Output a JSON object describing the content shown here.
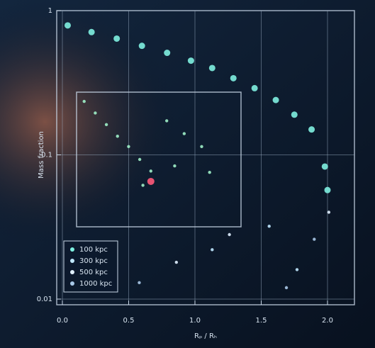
{
  "chart_data": [
    {
      "type": "scatter",
      "log_y": true,
      "grid": true,
      "legend": "lower left",
      "x_label": "Rₚ / Rₕ",
      "y_label": "Mass fraction",
      "xlim": [
        0.0,
        2.0
      ],
      "ylim": [
        0.01,
        1
      ],
      "xticks": [
        {
          "value": 0,
          "label": "0.0"
        },
        0.5,
        {
          "value": 1,
          "label": "1.0"
        },
        1.5,
        {
          "value": 2,
          "label": "2.0"
        }
      ],
      "yticks": [
        0.01,
        0.1,
        1
      ],
      "series": [
        {
          "name": "100 kpc",
          "color": "#7ff0e0",
          "x": [
            0.04,
            0.22,
            0.41,
            0.6,
            0.79,
            0.97,
            1.13,
            1.29,
            1.45,
            1.61,
            1.75,
            1.88,
            1.98,
            2.0
          ],
          "values": [
            0.79,
            0.71,
            0.64,
            0.57,
            0.51,
            0.45,
            0.4,
            0.34,
            0.29,
            0.24,
            0.19,
            0.15,
            0.083,
            0.057
          ]
        },
        {
          "name": "300 kpc",
          "color": "#c0e8ff",
          "x": [
            1.13,
            1.56,
            1.77
          ],
          "values": [
            0.022,
            0.032,
            0.016
          ]
        },
        {
          "name": "500 kpc",
          "color": "#e0f0ff",
          "x": [
            0.86,
            1.26,
            2.01
          ],
          "values": [
            0.018,
            0.028,
            0.04
          ]
        },
        {
          "name": "1000 kpc",
          "color": "#a8c8e8",
          "x": [
            0.58,
            1.69,
            1.9
          ],
          "values": [
            0.013,
            0.012,
            0.026
          ]
        }
      ]
    },
    {
      "type": "scatter",
      "xlim": [
        0,
        1
      ],
      "ylim": [
        0,
        1
      ],
      "series": [
        {
          "name": "inset",
          "color": "#9ff0c8",
          "x": [
            0.03,
            0.1,
            0.17,
            0.24,
            0.31,
            0.38,
            0.45,
            0.55,
            0.66,
            0.77,
            0.6,
            0.82,
            0.4
          ],
          "values": [
            0.95,
            0.86,
            0.77,
            0.68,
            0.6,
            0.5,
            0.41,
            0.8,
            0.7,
            0.6,
            0.45,
            0.4,
            0.3
          ]
        },
        {
          "name": "highlight",
          "color": "#ff5a7a",
          "x": [
            0.45
          ],
          "values": [
            0.33
          ]
        }
      ]
    }
  ]
}
